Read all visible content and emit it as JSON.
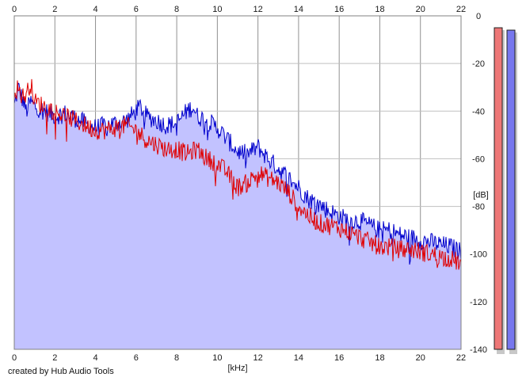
{
  "chart_data": {
    "type": "area",
    "title": "",
    "xlabel": "[kHz]",
    "ylabel": "[dB]",
    "xlim": [
      0,
      22
    ],
    "ylim": [
      -140,
      0
    ],
    "x_ticks": [
      0,
      2,
      4,
      6,
      8,
      10,
      12,
      14,
      16,
      18,
      20,
      22
    ],
    "y_ticks": [
      0,
      -20,
      -40,
      -60,
      -80,
      -100,
      -120,
      -140
    ],
    "grid": true,
    "series": [
      {
        "color": "#0000cc",
        "fill": "#c2c2ff",
        "x": [
          0,
          0.2,
          0.4,
          0.6,
          0.8,
          1.0,
          1.5,
          2.0,
          2.5,
          3.0,
          3.5,
          4.0,
          4.5,
          5.0,
          5.5,
          6.0,
          6.2,
          6.5,
          7.0,
          7.5,
          8.0,
          8.5,
          8.8,
          9.0,
          9.5,
          10.0,
          10.5,
          11.0,
          11.5,
          12.0,
          12.5,
          13.0,
          13.5,
          14.0,
          14.5,
          15.0,
          15.5,
          16.0,
          16.5,
          17.0,
          17.5,
          18.0,
          18.5,
          19.0,
          19.5,
          20.0,
          20.5,
          21.0,
          21.5,
          22.0
        ],
        "values": [
          -38,
          -30,
          -35,
          -40,
          -36,
          -38,
          -40,
          -42,
          -41,
          -43,
          -45,
          -47,
          -46,
          -45,
          -44,
          -40,
          -38,
          -42,
          -44,
          -46,
          -45,
          -40,
          -38,
          -42,
          -44,
          -47,
          -52,
          -57,
          -58,
          -55,
          -60,
          -64,
          -68,
          -72,
          -77,
          -79,
          -82,
          -84,
          -86,
          -86,
          -88,
          -90,
          -90,
          -92,
          -93,
          -94,
          -95,
          -96,
          -97,
          -99
        ]
      },
      {
        "color": "#e00000",
        "x": [
          0,
          0.2,
          0.4,
          0.6,
          0.8,
          1.0,
          1.5,
          2.0,
          2.5,
          3.0,
          3.5,
          4.0,
          4.5,
          5.0,
          5.5,
          6.0,
          6.5,
          7.0,
          7.5,
          8.0,
          8.5,
          9.0,
          9.5,
          10.0,
          10.5,
          11.0,
          11.5,
          12.0,
          12.5,
          13.0,
          13.5,
          14.0,
          14.5,
          15.0,
          15.5,
          16.0,
          16.5,
          17.0,
          17.5,
          18.0,
          18.5,
          19.0,
          19.5,
          20.0,
          20.5,
          21.0,
          21.5,
          22.0
        ],
        "values": [
          -32,
          -30,
          -34,
          -33,
          -28,
          -36,
          -38,
          -40,
          -42,
          -44,
          -46,
          -48,
          -48,
          -47,
          -46,
          -48,
          -52,
          -54,
          -56,
          -56,
          -58,
          -56,
          -60,
          -62,
          -66,
          -72,
          -70,
          -66,
          -68,
          -70,
          -74,
          -80,
          -84,
          -87,
          -88,
          -89,
          -91,
          -93,
          -95,
          -97,
          -97,
          -98,
          -98,
          -99,
          -100,
          -101,
          -102,
          -104
        ]
      }
    ],
    "level_meters": [
      {
        "color": "#ee7777",
        "level_db": -5
      },
      {
        "color": "#7777ee",
        "level_db": -6
      }
    ],
    "meter_scale": [
      -140,
      0
    ]
  },
  "credit": "created by Hub Audio Tools"
}
